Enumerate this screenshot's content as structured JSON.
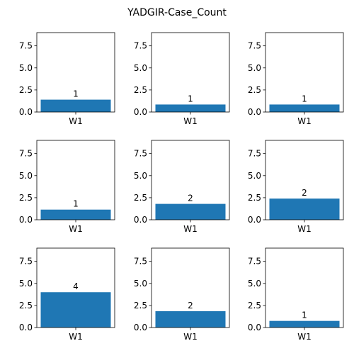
{
  "chart_data": {
    "type": "bar",
    "title": "YADGIR-Case_Count",
    "ylim": [
      0,
      9
    ],
    "yticks": [
      "0.0",
      "2.5",
      "5.0",
      "7.5"
    ],
    "bar_color": "#1f77b4",
    "grid": false,
    "subplots": [
      {
        "categories": [
          "W1"
        ],
        "values": [
          1.4
        ],
        "label": "1"
      },
      {
        "categories": [
          "W1"
        ],
        "values": [
          0.85
        ],
        "label": "1"
      },
      {
        "categories": [
          "W1"
        ],
        "values": [
          0.85
        ],
        "label": "1"
      },
      {
        "categories": [
          "W1"
        ],
        "values": [
          1.15
        ],
        "label": "1"
      },
      {
        "categories": [
          "W1"
        ],
        "values": [
          1.8
        ],
        "label": "2"
      },
      {
        "categories": [
          "W1"
        ],
        "values": [
          2.4
        ],
        "label": "2"
      },
      {
        "categories": [
          "W1"
        ],
        "values": [
          4.0
        ],
        "label": "4"
      },
      {
        "categories": [
          "W1"
        ],
        "values": [
          1.85
        ],
        "label": "2"
      },
      {
        "categories": [
          "W1"
        ],
        "values": [
          0.75
        ],
        "label": "1"
      }
    ]
  }
}
